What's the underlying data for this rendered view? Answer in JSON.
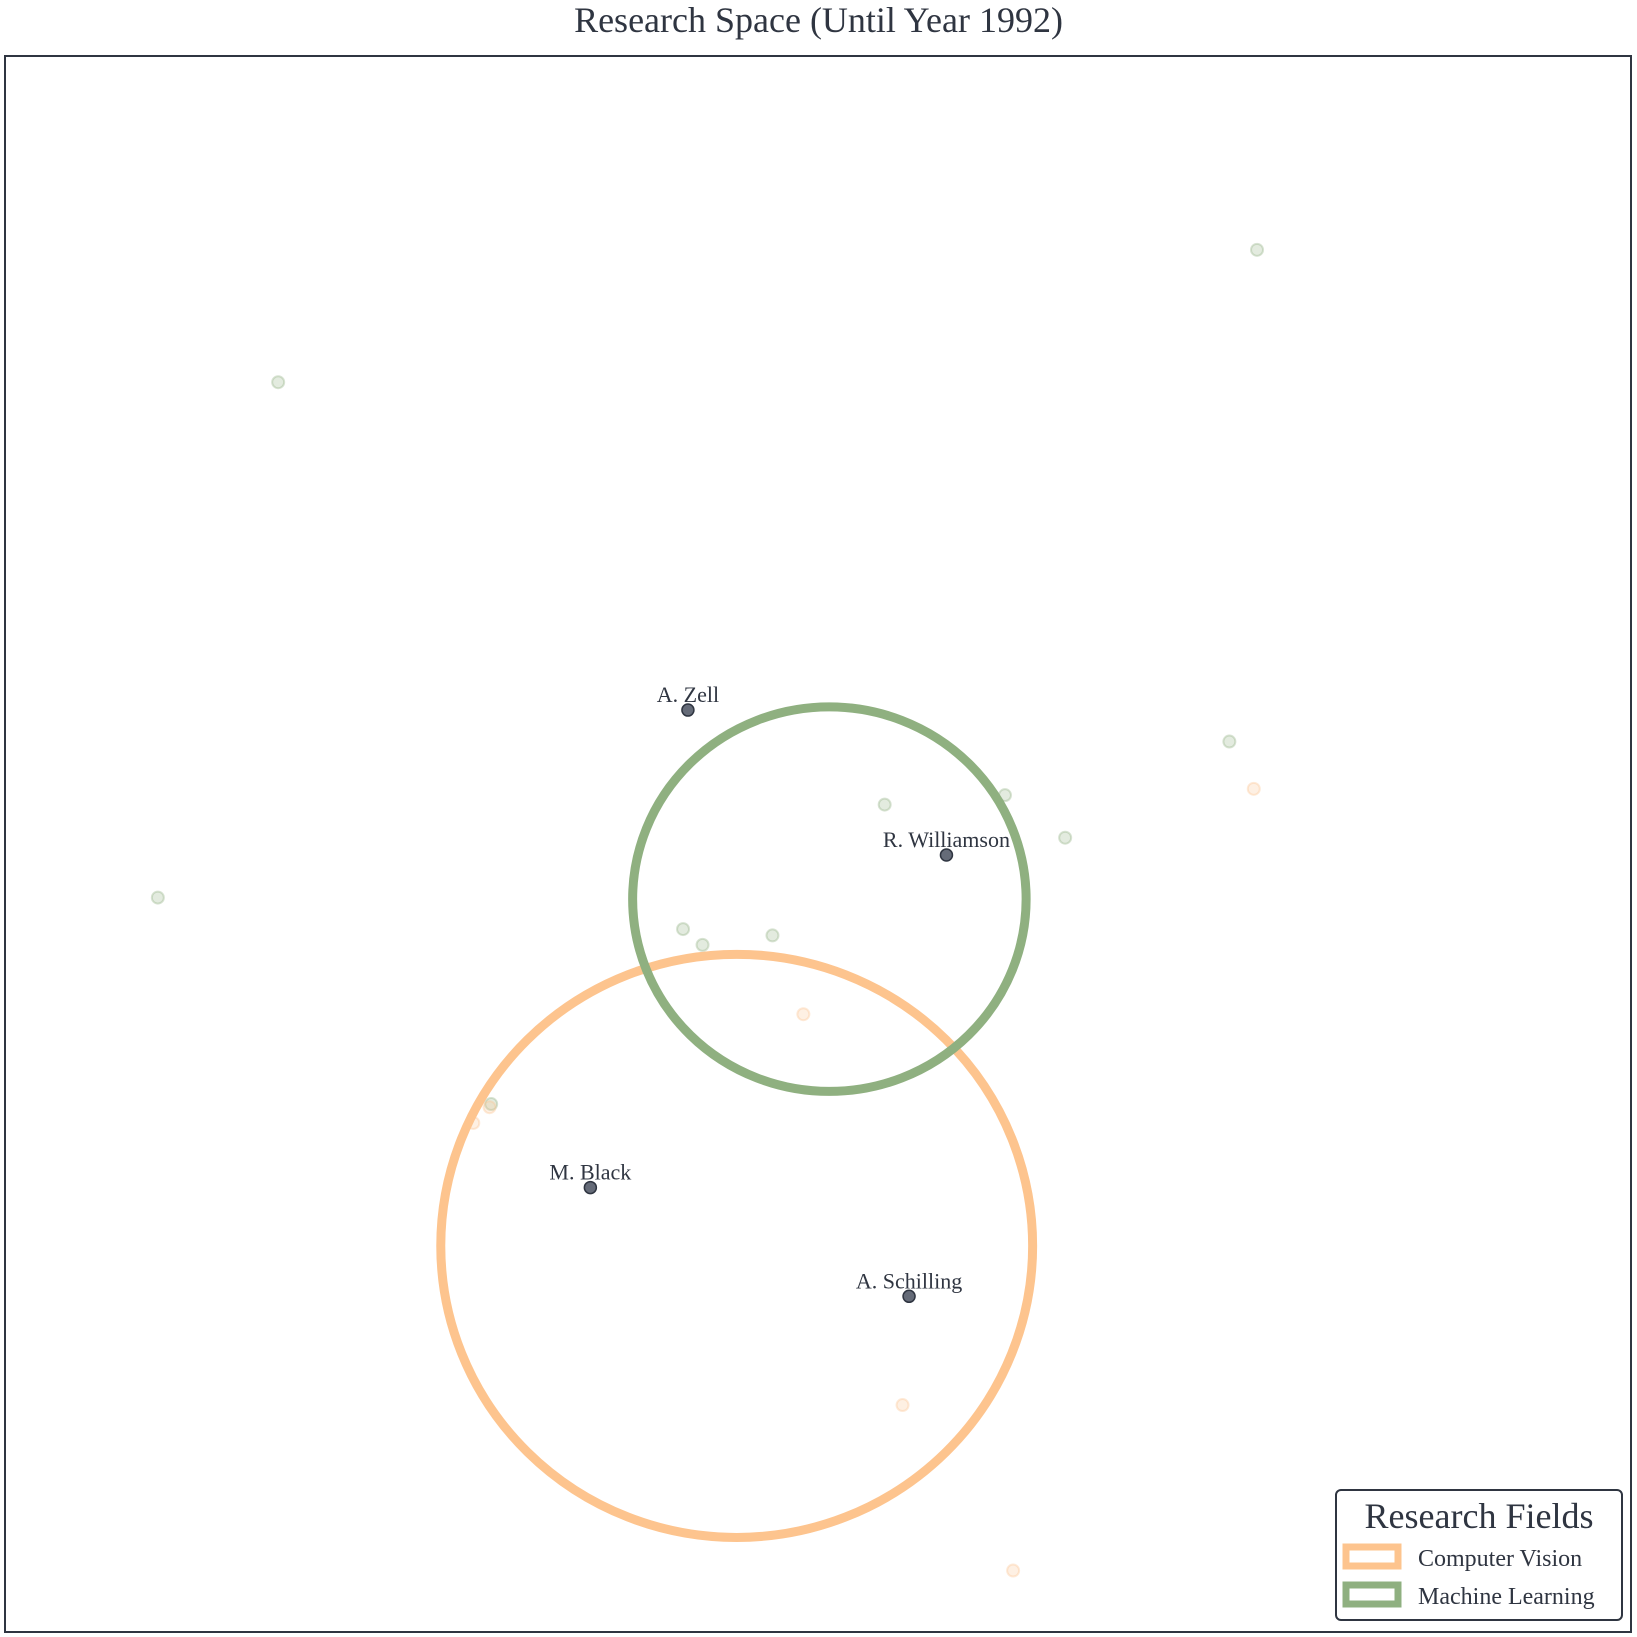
{
  "chart_data": {
    "type": "scatter",
    "title": "Research Space (Until Year 1992)",
    "xlabel": "",
    "ylabel": "",
    "xlim": [
      0,
      100
    ],
    "ylim": [
      0,
      100
    ],
    "grid": false,
    "legend": {
      "title": "Research Fields",
      "placement": "bottom-right",
      "entries": [
        {
          "label": "Computer Vision",
          "color": "#fdc48e"
        },
        {
          "label": "Machine Learning",
          "color": "#8fb080"
        }
      ]
    },
    "fields": [
      {
        "name": "Computer Vision",
        "color": "#fdc48e",
        "center": [
          45,
          24.5
        ],
        "rx": 18.2,
        "ry": 18.5
      },
      {
        "name": "Machine Learning",
        "color": "#8fb080",
        "center": [
          50.7,
          46.5
        ],
        "rx": 12.1,
        "ry": 12.2
      }
    ],
    "labeled_authors": [
      {
        "name": "A. Zell",
        "x": 42.0,
        "y": 58.5
      },
      {
        "name": "R. Williamson",
        "x": 57.9,
        "y": 49.3
      },
      {
        "name": "M. Black",
        "x": 36.0,
        "y": 28.2
      },
      {
        "name": "A. Schilling",
        "x": 55.6,
        "y": 21.3
      }
    ],
    "background_points": [
      {
        "x": 77.0,
        "y": 87.7,
        "field": "Machine Learning"
      },
      {
        "x": 16.8,
        "y": 79.3,
        "field": "Machine Learning"
      },
      {
        "x": 75.3,
        "y": 56.5,
        "field": "Machine Learning"
      },
      {
        "x": 76.8,
        "y": 53.5,
        "field": "Computer Vision"
      },
      {
        "x": 54.1,
        "y": 52.5,
        "field": "Machine Learning"
      },
      {
        "x": 61.5,
        "y": 53.1,
        "field": "Machine Learning"
      },
      {
        "x": 65.2,
        "y": 50.4,
        "field": "Machine Learning"
      },
      {
        "x": 9.4,
        "y": 46.6,
        "field": "Machine Learning"
      },
      {
        "x": 41.7,
        "y": 44.6,
        "field": "Machine Learning"
      },
      {
        "x": 42.9,
        "y": 43.6,
        "field": "Machine Learning"
      },
      {
        "x": 47.2,
        "y": 44.2,
        "field": "Machine Learning"
      },
      {
        "x": 49.1,
        "y": 39.2,
        "field": "Computer Vision"
      },
      {
        "x": 29.9,
        "y": 33.5,
        "field": "Machine Learning"
      },
      {
        "x": 29.8,
        "y": 33.3,
        "field": "Computer Vision"
      },
      {
        "x": 28.8,
        "y": 32.3,
        "field": "Computer Vision"
      },
      {
        "x": 55.2,
        "y": 14.4,
        "field": "Computer Vision"
      },
      {
        "x": 62.0,
        "y": 3.9,
        "field": "Computer Vision"
      }
    ]
  }
}
